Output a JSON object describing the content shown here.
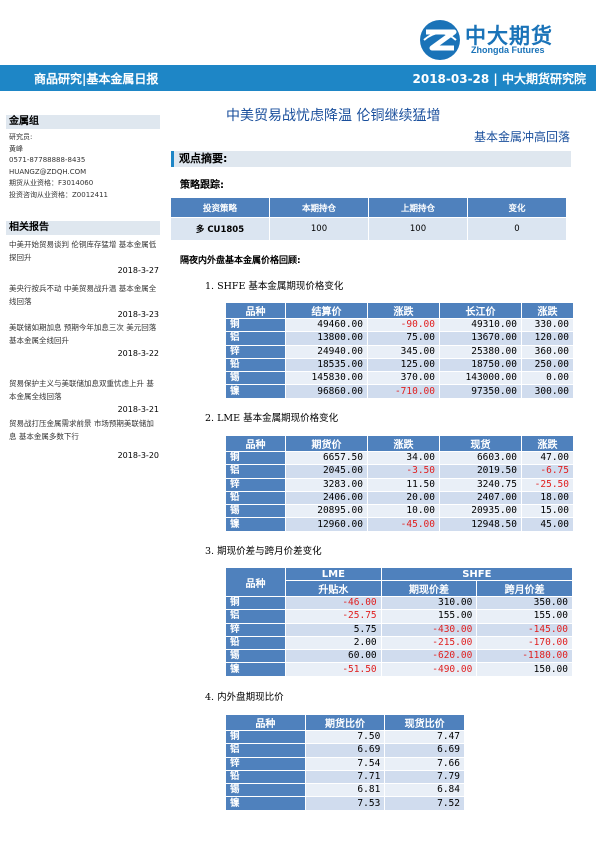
{
  "header": {
    "logo_cn": "中大期货",
    "logo_en": "Zhongda Futures",
    "banner_left": "商品研究|基本金属日报",
    "banner_right": "2018-03-28 | 中大期货研究院"
  },
  "sidebar": {
    "group_title": "金属组",
    "contact": [
      "研究员:",
      "黄峰",
      "0571-87788888-8435",
      "HUANGZ@ZDQH.COM",
      "期货从业资格：F3014060",
      "投资咨询从业资格：Z0012411"
    ],
    "reports_title": "相关报告",
    "reports": [
      {
        "text": "中美开始贸易谈判 伦铜库存猛增 基本金属低探回升",
        "date": "2018-3-27"
      },
      {
        "text": "美央行按兵不动 中美贸易战升温 基本金属全线回落",
        "date": "2018-3-23"
      },
      {
        "text": "美联储如期加息 预期今年加息三次 美元回落 基本金属全线回升",
        "date": "2018-3-22"
      },
      {
        "text": "贸易保护主义与美联储加息双重忧虑上升 基本金属全线回落",
        "date": "2018-3-21"
      },
      {
        "text": "贸易战打压金属需求前景 市场预期美联储加息 基本金属多数下行",
        "date": "2018-3-20"
      }
    ]
  },
  "main": {
    "title": "中美贸易战忧虑降温 伦铜继续猛增",
    "subtitle": "基本金属冲高回落",
    "summary_label": "观点摘要:",
    "strategy_label": "策略跟踪:",
    "strategy_table": {
      "headers": [
        "投资策略",
        "本期持仓",
        "上期持仓",
        "变化"
      ],
      "rows": [
        [
          "多 CU1805",
          "100",
          "100",
          "0"
        ]
      ]
    },
    "review_label": "隔夜内外盘基本金属价格回顾:",
    "sec1": "1.  SHFE 基本金属期现价格变化",
    "shfe": {
      "headers": [
        "品种",
        "结算价",
        "涨跌",
        "长江价",
        "涨跌"
      ],
      "rows": [
        [
          "铜",
          "49460.00",
          "-90.00",
          "49310.00",
          "330.00"
        ],
        [
          "铝",
          "13800.00",
          "75.00",
          "13670.00",
          "120.00"
        ],
        [
          "锌",
          "24940.00",
          "345.00",
          "25380.00",
          "360.00"
        ],
        [
          "铅",
          "18535.00",
          "125.00",
          "18750.00",
          "250.00"
        ],
        [
          "锡",
          "145830.00",
          "370.00",
          "143000.00",
          "0.00"
        ],
        [
          "镍",
          "96860.00",
          "-710.00",
          "97350.00",
          "300.00"
        ]
      ]
    },
    "sec2": "2.  LME  基本金属期现价格变化",
    "lme": {
      "headers": [
        "品种",
        "期货价",
        "涨跌",
        "现货",
        "涨跌"
      ],
      "rows": [
        [
          "铜",
          "6657.50",
          "34.00",
          "6603.00",
          "47.00"
        ],
        [
          "铝",
          "2045.00",
          "-3.50",
          "2019.50",
          "-6.75"
        ],
        [
          "锌",
          "3283.00",
          "11.50",
          "3240.75",
          "-25.50"
        ],
        [
          "铅",
          "2406.00",
          "20.00",
          "2407.00",
          "18.00"
        ],
        [
          "锡",
          "20895.00",
          "10.00",
          "20935.00",
          "15.00"
        ],
        [
          "镍",
          "12960.00",
          "-45.00",
          "12948.50",
          "45.00"
        ]
      ]
    },
    "sec3": "3.  期现价差与跨月价差变化",
    "spread": {
      "group_headers": [
        "品种",
        "LME",
        "SHFE"
      ],
      "headers": [
        "升贴水",
        "期现价差",
        "跨月价差"
      ],
      "rows": [
        [
          "铜",
          "-46.00",
          "310.00",
          "350.00"
        ],
        [
          "铝",
          "-25.75",
          "155.00",
          "155.00"
        ],
        [
          "锌",
          "5.75",
          "-430.00",
          "-145.00"
        ],
        [
          "铅",
          "2.00",
          "-215.00",
          "-170.00"
        ],
        [
          "锡",
          "60.00",
          "-620.00",
          "-1180.00"
        ],
        [
          "镍",
          "-51.50",
          "-490.00",
          "150.00"
        ]
      ]
    },
    "sec4": "4.  内外盘期现比价",
    "ratio": {
      "headers": [
        "品种",
        "期货比价",
        "现货比价"
      ],
      "rows": [
        [
          "铜",
          "7.50",
          "7.47"
        ],
        [
          "铝",
          "6.69",
          "6.69"
        ],
        [
          "锌",
          "7.54",
          "7.66"
        ],
        [
          "铅",
          "7.71",
          "7.79"
        ],
        [
          "锡",
          "6.81",
          "6.84"
        ],
        [
          "镍",
          "7.53",
          "7.52"
        ]
      ]
    }
  }
}
